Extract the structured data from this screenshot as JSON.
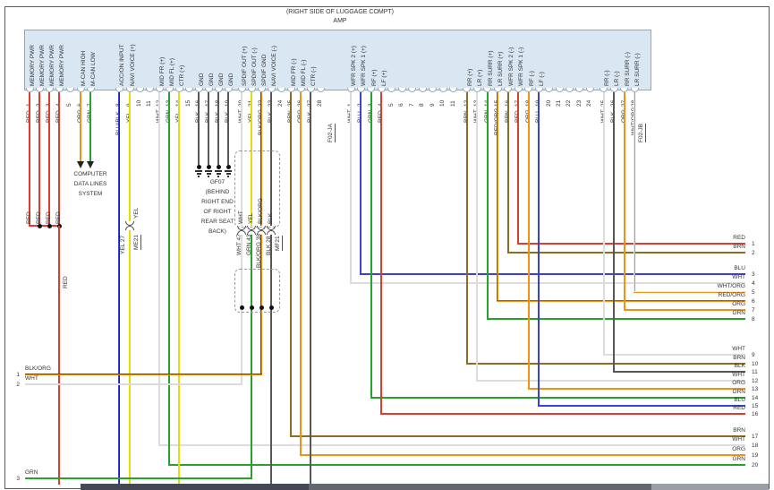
{
  "page": {
    "location_note": "(RIGHT SIDE OF LUGGAGE COMPT)",
    "component": "AMP"
  },
  "colors": {
    "RED": "#e23b2e",
    "ORG": "#f39210",
    "GRN": "#25a42c",
    "BLU": "#3c41dd",
    "YEL": "#e8dc00",
    "BLK": "#575757",
    "WHT": "#dcdcdc",
    "BRN": "#8e6d22",
    "BLU/BLK": "#3c41dd|#2a2a2a",
    "BLK/ORG": "#4a4a4a|#f39210",
    "RED/ORG": "#e23b2e|#f39210",
    "WHT/ORG": "#e8e8e8|#f39210"
  },
  "connector_a": {
    "name": "F02-JA",
    "pins": [
      {
        "n": 1,
        "label": "MEMORY PWR",
        "color": "RED"
      },
      {
        "n": 2,
        "label": "MEMORY PWR",
        "color": "RED"
      },
      {
        "n": 3,
        "label": "MEMORY PWR",
        "color": "RED"
      },
      {
        "n": 4,
        "label": "MEMORY PWR",
        "color": "RED"
      },
      {
        "n": 5,
        "label": "",
        "color": ""
      },
      {
        "n": 6,
        "label": "M-CAN HIGH",
        "color": "ORG"
      },
      {
        "n": 7,
        "label": "M-CAN LOW",
        "color": "GRN"
      },
      {
        "n": 8,
        "label": "ACC/ON INPUT",
        "color": "BLU/BLK"
      },
      {
        "n": 9,
        "label": "NAVI VOICE (+)",
        "color": "YEL"
      },
      {
        "n": 10,
        "label": "",
        "color": ""
      },
      {
        "n": 11,
        "label": "",
        "color": ""
      },
      {
        "n": 12,
        "label": "MID FR (+)",
        "color": "WHT"
      },
      {
        "n": 13,
        "label": "MID FL (+)",
        "color": "GRN"
      },
      {
        "n": 14,
        "label": "CTR (+)",
        "color": "YEL"
      },
      {
        "n": 15,
        "label": "",
        "color": ""
      },
      {
        "n": 16,
        "label": "GND",
        "color": "BLK"
      },
      {
        "n": 17,
        "label": "GND",
        "color": "BLK"
      },
      {
        "n": 18,
        "label": "GND",
        "color": "BLK"
      },
      {
        "n": 19,
        "label": "GND",
        "color": "BLK"
      },
      {
        "n": 20,
        "label": "SPDIF OUT (+)",
        "color": "WHT"
      },
      {
        "n": 21,
        "label": "SPDIF OUT (-)",
        "color": "YEL"
      },
      {
        "n": 22,
        "label": "SPDIF GND",
        "color": "BLK/ORG"
      },
      {
        "n": 23,
        "label": "NAVI VOICE (-)",
        "color": "BLK"
      },
      {
        "n": 24,
        "label": "",
        "color": ""
      },
      {
        "n": 25,
        "label": "MID FR (-)",
        "color": "BRN"
      },
      {
        "n": 26,
        "label": "MID FL (-)",
        "color": "ORG"
      },
      {
        "n": 27,
        "label": "CTR (-)",
        "color": "BLK"
      },
      {
        "n": 28,
        "label": "",
        "color": ""
      }
    ]
  },
  "connector_b": {
    "name": "F02-JB",
    "pins": [
      {
        "n": 1,
        "label": "WFR SPK 2 (+)",
        "color": "WHT"
      },
      {
        "n": 2,
        "label": "WFR SPK 1 (+)",
        "color": "BLU"
      },
      {
        "n": 3,
        "label": "RF (+)",
        "color": "GRN"
      },
      {
        "n": 4,
        "label": "LF (+)",
        "color": "RED"
      },
      {
        "n": 5,
        "label": "",
        "color": ""
      },
      {
        "n": 6,
        "label": "",
        "color": ""
      },
      {
        "n": 7,
        "label": "",
        "color": ""
      },
      {
        "n": 8,
        "label": "",
        "color": ""
      },
      {
        "n": 9,
        "label": "",
        "color": ""
      },
      {
        "n": 10,
        "label": "",
        "color": ""
      },
      {
        "n": 11,
        "label": "",
        "color": ""
      },
      {
        "n": 12,
        "label": "RR (+)",
        "color": "BRN"
      },
      {
        "n": 13,
        "label": "LR (+)",
        "color": "WHT"
      },
      {
        "n": 14,
        "label": "RR SURR (+)",
        "color": "GRN"
      },
      {
        "n": 15,
        "label": "LR SURR (+)",
        "color": "RED/ORG"
      },
      {
        "n": 16,
        "label": "WFR SPK 2 (-)",
        "color": "BRN"
      },
      {
        "n": 17,
        "label": "WFR SPK 1 (-)",
        "color": "RED"
      },
      {
        "n": 18,
        "label": "RF (-)",
        "color": "ORG"
      },
      {
        "n": 19,
        "label": "LF (-)",
        "color": "BLU"
      },
      {
        "n": 20,
        "label": "",
        "color": ""
      },
      {
        "n": 21,
        "label": "",
        "color": ""
      },
      {
        "n": 22,
        "label": "",
        "color": ""
      },
      {
        "n": 23,
        "label": "",
        "color": ""
      },
      {
        "n": 24,
        "label": "",
        "color": ""
      },
      {
        "n": 25,
        "label": "RR (-)",
        "color": "WHT"
      },
      {
        "n": 26,
        "label": "LR (-)",
        "color": "BLK"
      },
      {
        "n": 27,
        "label": "RR SURR (-)",
        "color": "ORG"
      },
      {
        "n": 28,
        "label": "LR SURR (-)",
        "color": "WHT/ORG"
      }
    ]
  },
  "annotations": {
    "computer_data_lines": [
      "COMPUTER",
      "DATA LINES",
      "SYSTEM"
    ],
    "ground_label": [
      "GF07",
      "(BEHIND",
      "RIGHT END",
      "OF RIGHT",
      "REAR SEAT",
      "BACK)"
    ],
    "splice_yel": {
      "name": "ME21",
      "above": "YEL",
      "below": "YEL 27"
    },
    "splice_bundle": {
      "name": "MF21",
      "above": [
        "WHT",
        "YEL",
        "BLK/ORG",
        "BLK"
      ],
      "below": [
        "WHT 47",
        "GRN 43",
        "BLK/ORG 38",
        "BLK 28"
      ]
    },
    "merged_wire_label": "RED"
  },
  "left_circuits": [
    {
      "n": "1",
      "color": "BLK/ORG",
      "from": "F02-JA 22"
    },
    {
      "n": "2",
      "color": "WHT",
      "from": "F02-JA 20"
    },
    {
      "n": "3",
      "color": "GRN",
      "from": "F02-JA 21"
    }
  ],
  "right_circuits": [
    {
      "n": "1",
      "color": "RED",
      "from": "F02-JB 17"
    },
    {
      "n": "2",
      "color": "BRN",
      "from": "F02-JB 16"
    },
    {
      "n": "3",
      "color": "BLU",
      "from": "F02-JB 2"
    },
    {
      "n": "4",
      "color": "WHT",
      "from": "F02-JB 1"
    },
    {
      "n": "5",
      "color": "WHT/ORG",
      "from": "F02-JB 28"
    },
    {
      "n": "6",
      "color": "RED/ORG",
      "from": "F02-JB 15"
    },
    {
      "n": "7",
      "color": "ORG",
      "from": "F02-JB 27"
    },
    {
      "n": "8",
      "color": "GRN",
      "from": "F02-JB 14"
    },
    {
      "n": "9",
      "color": "WHT",
      "from": "F02-JB 25"
    },
    {
      "n": "10",
      "color": "BRN",
      "from": "F02-JB 12"
    },
    {
      "n": "11",
      "color": "BLK",
      "from": "F02-JB 26"
    },
    {
      "n": "12",
      "color": "WHT",
      "from": "F02-JB 13"
    },
    {
      "n": "13",
      "color": "ORG",
      "from": "F02-JB 18"
    },
    {
      "n": "14",
      "color": "GRN",
      "from": "F02-JB 3"
    },
    {
      "n": "15",
      "color": "BLU",
      "from": "F02-JB 19"
    },
    {
      "n": "16",
      "color": "RED",
      "from": "F02-JB 4"
    },
    {
      "n": "17",
      "color": "BRN",
      "from": "F02-JA 25"
    },
    {
      "n": "18",
      "color": "WHT",
      "from": "F02-JA 12"
    },
    {
      "n": "19",
      "color": "ORG",
      "from": "F02-JA 26"
    },
    {
      "n": "20",
      "color": "GRN",
      "from": "F02-JA 13"
    }
  ]
}
